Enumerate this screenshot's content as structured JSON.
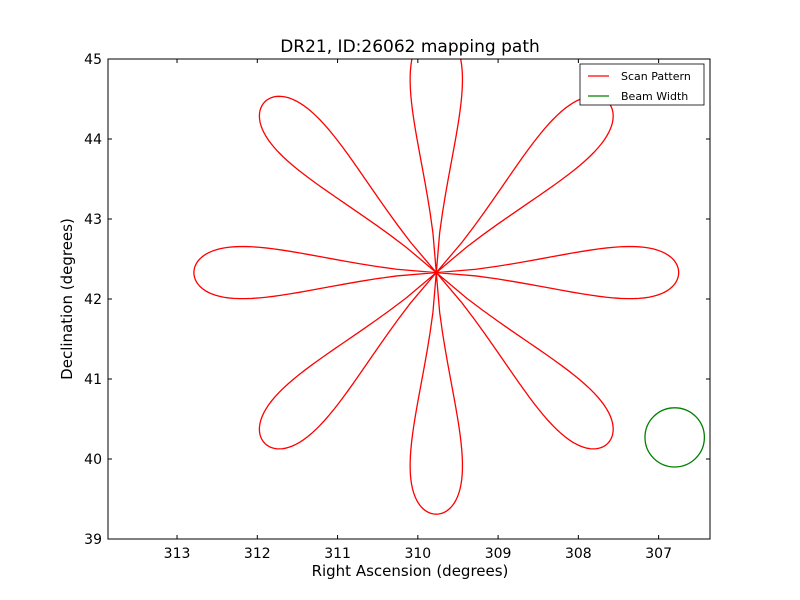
{
  "chart_data": {
    "type": "line",
    "title": "DR21, ID:26062 mapping path",
    "xlabel": "Right Ascension (degrees)",
    "ylabel": "Declination (degrees)",
    "xlim": [
      313.86,
      306.36
    ],
    "ylim": [
      39,
      45
    ],
    "x_inverted": true,
    "grid": false,
    "legend_position": "top-right",
    "x_ticks": [
      313,
      312,
      311,
      310,
      309,
      308,
      307
    ],
    "x_tick_labels": [
      "313",
      "312",
      "311",
      "310",
      "309",
      "308",
      "307"
    ],
    "y_ticks": [
      39,
      40,
      41,
      42,
      43,
      44,
      45
    ],
    "y_tick_labels": [
      "39",
      "40",
      "41",
      "42",
      "43",
      "44",
      "45"
    ],
    "series": [
      {
        "name": "Scan Pattern",
        "kind": "rose-curve",
        "color": "#ff0000",
        "center_ra": 309.77,
        "center_dec": 42.33,
        "petals": 8,
        "petal_length_deg": 3.02,
        "petal_half_width_deg": 0.34
      },
      {
        "name": "Beam Width",
        "kind": "circle",
        "color": "#008000",
        "center_ra": 306.8,
        "center_dec": 40.27,
        "radius_deg": 0.37
      }
    ]
  }
}
